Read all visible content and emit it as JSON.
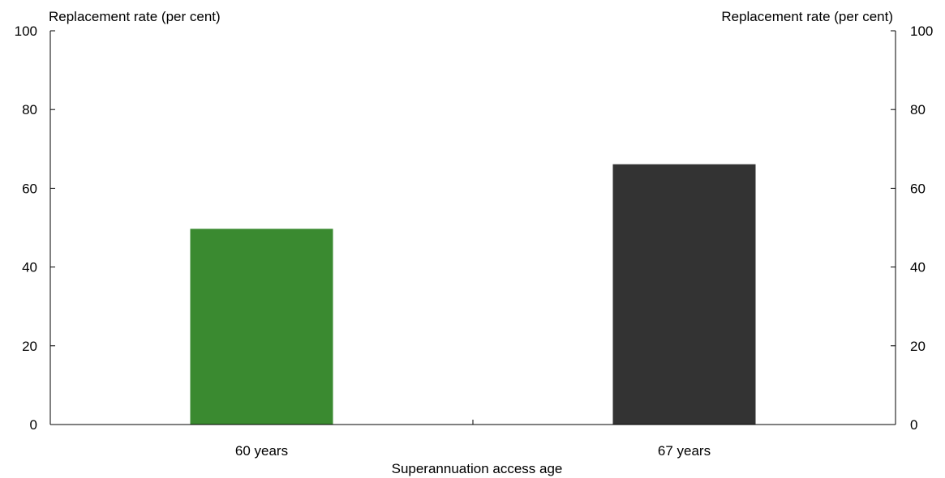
{
  "chart_data": {
    "type": "bar",
    "categories": [
      "60 years",
      "67 years"
    ],
    "values": [
      49.7,
      66.1
    ],
    "colors": [
      "#3a8a30",
      "#333333"
    ],
    "xlabel": "Superannuation access age",
    "ylabel_left": "Replacement rate (per cent)",
    "ylabel_right": "Replacement rate (per cent)",
    "ylim": [
      0,
      100
    ],
    "yticks": [
      "0",
      "20",
      "40",
      "60",
      "80",
      "100"
    ],
    "grid": false,
    "legend": "none"
  }
}
